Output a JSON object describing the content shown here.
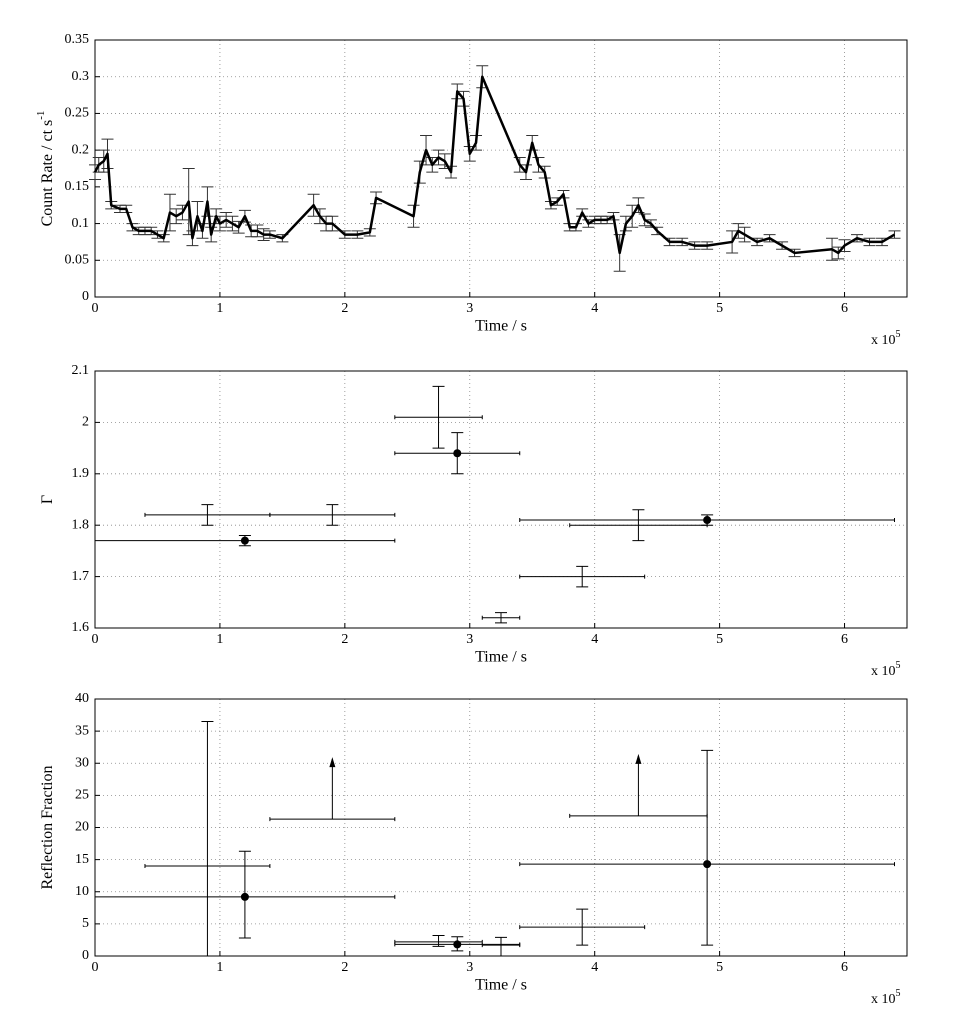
{
  "chart_data": [
    {
      "type": "line",
      "xlabel": "Time / s",
      "x_multiplier": "x 10",
      "x_multiplier_exponent": "5",
      "ylabel": "Count Rate / ct s",
      "ylabel_exponent": "-1",
      "xlim": [
        0,
        6.5
      ],
      "ylim": [
        0,
        0.35
      ],
      "xticks": [
        0,
        1,
        2,
        3,
        4,
        5,
        6
      ],
      "yticks": [
        0,
        0.05,
        0.1,
        0.15,
        0.2,
        0.25,
        0.3,
        0.35
      ],
      "grid": true,
      "color": "#000000",
      "series": [
        {
          "x": [
            0,
            0.03,
            0.07,
            0.1,
            0.13,
            0.2,
            0.25,
            0.3,
            0.35,
            0.4,
            0.45,
            0.5,
            0.55,
            0.6,
            0.65,
            0.7,
            0.75,
            0.78,
            0.82,
            0.86,
            0.9,
            0.93,
            0.97,
            1.0,
            1.05,
            1.1,
            1.15,
            1.2,
            1.25,
            1.3,
            1.35,
            1.4,
            1.5,
            1.75,
            1.8,
            1.85,
            1.9,
            2.0,
            2.1,
            2.2,
            2.25,
            2.55,
            2.6,
            2.65,
            2.7,
            2.75,
            2.8,
            2.85,
            2.9,
            2.95,
            3.0,
            3.05,
            3.1,
            3.4,
            3.45,
            3.5,
            3.55,
            3.6,
            3.65,
            3.7,
            3.75,
            3.8,
            3.85,
            3.9,
            3.95,
            4.0,
            4.05,
            4.1,
            4.15,
            4.2,
            4.25,
            4.3,
            4.35,
            4.4,
            4.45,
            4.5,
            4.6,
            4.7,
            4.8,
            4.9,
            5.1,
            5.15,
            5.2,
            5.3,
            5.4,
            5.5,
            5.6,
            5.9,
            5.95,
            6.0,
            6.1,
            6.2,
            6.3,
            6.4
          ],
          "values": [
            0.17,
            0.18,
            0.185,
            0.195,
            0.125,
            0.12,
            0.12,
            0.095,
            0.09,
            0.09,
            0.09,
            0.085,
            0.08,
            0.115,
            0.11,
            0.115,
            0.13,
            0.08,
            0.11,
            0.09,
            0.13,
            0.085,
            0.11,
            0.1,
            0.105,
            0.1,
            0.095,
            0.11,
            0.09,
            0.09,
            0.085,
            0.085,
            0.08,
            0.125,
            0.11,
            0.1,
            0.1,
            0.085,
            0.085,
            0.088,
            0.135,
            0.11,
            0.17,
            0.2,
            0.18,
            0.19,
            0.185,
            0.17,
            0.28,
            0.27,
            0.195,
            0.21,
            0.3,
            0.18,
            0.17,
            0.21,
            0.18,
            0.17,
            0.125,
            0.13,
            0.14,
            0.095,
            0.095,
            0.115,
            0.1,
            0.105,
            0.105,
            0.105,
            0.11,
            0.06,
            0.1,
            0.11,
            0.125,
            0.105,
            0.1,
            0.09,
            0.075,
            0.075,
            0.07,
            0.07,
            0.075,
            0.09,
            0.085,
            0.075,
            0.08,
            0.07,
            0.06,
            0.065,
            0.06,
            0.07,
            0.08,
            0.075,
            0.075,
            0.085
          ],
          "errors": [
            0.01,
            0.01,
            0.015,
            0.02,
            0.005,
            0.005,
            0.005,
            0.005,
            0.005,
            0.005,
            0.005,
            0.005,
            0.005,
            0.025,
            0.01,
            0.01,
            0.045,
            0.01,
            0.02,
            0.01,
            0.02,
            0.01,
            0.01,
            0.01,
            0.01,
            0.01,
            0.008,
            0.008,
            0.008,
            0.008,
            0.008,
            0.005,
            0.005,
            0.015,
            0.01,
            0.01,
            0.01,
            0.005,
            0.005,
            0.005,
            0.008,
            0.015,
            0.015,
            0.02,
            0.01,
            0.01,
            0.01,
            0.008,
            0.01,
            0.01,
            0.01,
            0.01,
            0.015,
            0.01,
            0.01,
            0.01,
            0.01,
            0.008,
            0.005,
            0.005,
            0.005,
            0.005,
            0.005,
            0.005,
            0.005,
            0.005,
            0.005,
            0.005,
            0.005,
            0.025,
            0.01,
            0.015,
            0.01,
            0.008,
            0.005,
            0.005,
            0.005,
            0.005,
            0.005,
            0.005,
            0.015,
            0.01,
            0.01,
            0.005,
            0.005,
            0.005,
            0.005,
            0.015,
            0.008,
            0.008,
            0.005,
            0.005,
            0.005,
            0.005
          ]
        }
      ]
    },
    {
      "type": "scatter",
      "xlabel": "Time / s",
      "x_multiplier": "x 10",
      "x_multiplier_exponent": "5",
      "ylabel": "Γ",
      "xlim": [
        0,
        6.5
      ],
      "ylim": [
        1.6,
        2.1
      ],
      "xticks": [
        0,
        1,
        2,
        3,
        4,
        5,
        6
      ],
      "yticks": [
        1.6,
        1.7,
        1.8,
        1.9,
        2,
        2.1
      ],
      "grid": true,
      "color": "#000000",
      "series": [
        {
          "marker": "none",
          "x": [
            0.9,
            1.9,
            2.75,
            3.25,
            3.9,
            4.35
          ],
          "x_low": [
            0.4,
            1.4,
            2.4,
            3.1,
            3.4,
            3.8
          ],
          "x_high": [
            1.4,
            2.4,
            3.1,
            3.4,
            4.4,
            4.9
          ],
          "values": [
            1.82,
            1.82,
            2.01,
            1.62,
            1.7,
            1.8
          ],
          "y_low": [
            1.8,
            1.8,
            1.95,
            1.61,
            1.68,
            1.77
          ],
          "y_high": [
            1.84,
            1.84,
            2.07,
            1.63,
            1.72,
            1.83
          ]
        },
        {
          "marker": "circle",
          "x": [
            1.2,
            2.9,
            4.9
          ],
          "x_low": [
            0,
            2.4,
            3.4
          ],
          "x_high": [
            2.4,
            3.4,
            6.4
          ],
          "values": [
            1.77,
            1.94,
            1.81
          ],
          "y_low": [
            1.76,
            1.9,
            1.8
          ],
          "y_high": [
            1.78,
            1.98,
            1.82
          ]
        }
      ]
    },
    {
      "type": "scatter",
      "xlabel": "Time / s",
      "x_multiplier": "x 10",
      "x_multiplier_exponent": "5",
      "ylabel": "Reflection Fraction",
      "xlim": [
        0,
        6.5
      ],
      "ylim": [
        0,
        40
      ],
      "xticks": [
        0,
        1,
        2,
        3,
        4,
        5,
        6
      ],
      "yticks": [
        0,
        5,
        10,
        15,
        20,
        25,
        30,
        35,
        40
      ],
      "grid": true,
      "color": "#000000",
      "series": [
        {
          "marker": "none",
          "x": [
            0.9,
            2.75,
            3.25,
            3.9
          ],
          "x_low": [
            0.4,
            2.4,
            3.1,
            3.4
          ],
          "x_high": [
            1.4,
            3.1,
            3.4,
            4.4
          ],
          "values": [
            14,
            2.2,
            1.7,
            4.5
          ],
          "y_low": [
            0,
            1.5,
            0,
            1.7
          ],
          "y_high": [
            36.5,
            3.2,
            2.9,
            7.3
          ]
        },
        {
          "marker": "circle",
          "x": [
            1.2,
            2.9,
            4.9
          ],
          "x_low": [
            0,
            2.4,
            3.4
          ],
          "x_high": [
            2.4,
            3.4,
            6.4
          ],
          "values": [
            9.2,
            1.8,
            14.3
          ],
          "y_low": [
            2.8,
            0.8,
            1.7
          ],
          "y_high": [
            16.3,
            3,
            32
          ]
        },
        {
          "marker": "none",
          "limit": "lower",
          "x": [
            1.9,
            4.35
          ],
          "x_low": [
            1.4,
            3.8
          ],
          "x_high": [
            2.4,
            4.9
          ],
          "values": [
            21.3,
            21.8
          ]
        }
      ]
    }
  ]
}
